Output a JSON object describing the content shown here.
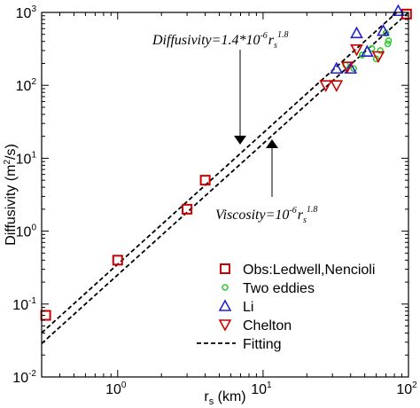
{
  "chart_data": {
    "type": "scatter",
    "x_scale": "log",
    "y_scale": "log",
    "xlim": [
      0.3,
      100
    ],
    "ylim": [
      0.01,
      1000
    ],
    "xlabel": {
      "base": "r",
      "sub": "s",
      "unit": " (km)"
    },
    "ylabel": {
      "text": "Diffusivity (m",
      "sup": "2",
      "tail": "/s)"
    },
    "x_ticks": [
      {
        "value": 1,
        "base": "10",
        "exp": "0"
      },
      {
        "value": 10,
        "base": "10",
        "exp": "1"
      },
      {
        "value": 100,
        "base": "10",
        "exp": "2"
      }
    ],
    "y_ticks": [
      {
        "value": 0.01,
        "base": "10",
        "exp": "-2"
      },
      {
        "value": 0.1,
        "base": "10",
        "exp": "-1"
      },
      {
        "value": 1,
        "base": "10",
        "exp": "0"
      },
      {
        "value": 10,
        "base": "10",
        "exp": "1"
      },
      {
        "value": 100,
        "base": "10",
        "exp": "2"
      },
      {
        "value": 1000,
        "base": "10",
        "exp": "3"
      }
    ],
    "series": [
      {
        "name": "Obs:Ledwell,Nencioli",
        "marker": "square",
        "color": "#cc0000",
        "points": [
          [
            0.32,
            0.07
          ],
          [
            1.0,
            0.4
          ],
          [
            3.0,
            2.0
          ],
          [
            4.0,
            5.0
          ],
          [
            97,
            950
          ]
        ]
      },
      {
        "name": "Two eddies",
        "marker": "circle",
        "color": "#33cc33",
        "points": [
          [
            42,
            170
          ],
          [
            56,
            320
          ],
          [
            60,
            230
          ],
          [
            72,
            370
          ],
          [
            73,
            410
          ],
          [
            70,
            520
          ],
          [
            48,
            260
          ],
          [
            37,
            190
          ],
          [
            64,
            300
          ]
        ]
      },
      {
        "name": "Li",
        "marker": "triangle-up",
        "color": "#2222cc",
        "points": [
          [
            85,
            1050
          ],
          [
            44,
            520
          ],
          [
            32,
            170
          ],
          [
            40,
            170
          ],
          [
            52,
            290
          ],
          [
            67,
            560
          ]
        ]
      },
      {
        "name": "Chelton",
        "marker": "triangle-down",
        "color": "#cc0000",
        "points": [
          [
            27,
            100
          ],
          [
            32,
            100
          ],
          [
            38,
            180
          ],
          [
            44,
            310
          ],
          [
            62,
            250
          ]
        ]
      }
    ],
    "fits": [
      {
        "name": "Fitting",
        "coef": 1.4e-06,
        "exponent": 1.8
      },
      {
        "coef": 1e-06,
        "exponent": 1.8
      }
    ],
    "fit_style": {
      "color": "#000000",
      "dash": "dashed"
    },
    "annotations": [
      {
        "name": "diffusivity",
        "lhs": "Diffusivity=1.4*10",
        "exp": "-6",
        "r": "r",
        "sub": "s",
        "rexp": "1.8",
        "arrow": "down"
      },
      {
        "name": "viscosity",
        "lhs": "Viscosity=10",
        "exp": "-6",
        "r": "r",
        "sub": "s",
        "rexp": "1.8",
        "arrow": "up"
      }
    ],
    "legend": {
      "placement": "bottom-right",
      "entries": [
        {
          "label": "Obs:Ledwell,Nencioli",
          "marker": "square",
          "color": "#cc0000"
        },
        {
          "label": "Two eddies",
          "marker": "circle",
          "color": "#33cc33"
        },
        {
          "label": "Li",
          "marker": "triangle-up",
          "color": "#2222cc"
        },
        {
          "label": "Chelton",
          "marker": "triangle-down",
          "color": "#cc0000"
        },
        {
          "label": "Fitting",
          "marker": "dashed-line",
          "color": "#000000"
        }
      ]
    }
  }
}
